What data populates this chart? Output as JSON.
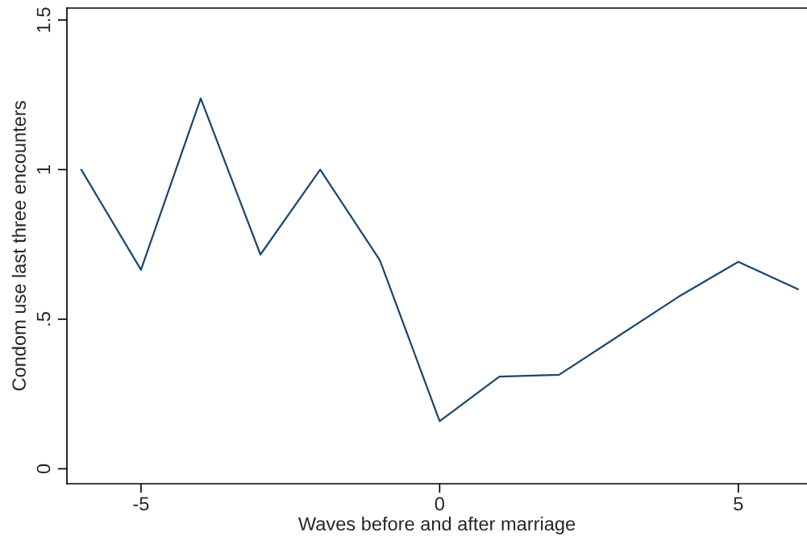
{
  "chart_data": {
    "type": "line",
    "xlabel": "Waves before and after marriage",
    "ylabel": "Condom use last three encounters",
    "x": [
      -6,
      -5,
      -4,
      -3,
      -2,
      -1,
      0,
      1,
      2,
      4,
      5,
      6
    ],
    "series": [
      {
        "color": "#1a476f",
        "values": [
          1.0,
          0.665,
          1.238,
          0.716,
          1.0,
          0.697,
          0.159,
          0.308,
          0.314,
          0.575,
          0.692,
          0.6
        ]
      }
    ],
    "xlim": [
      -6.24,
      6.15
    ],
    "ylim": [
      -0.05,
      1.54
    ],
    "xticks": [
      -5,
      0,
      5
    ],
    "yticks": [
      0,
      {
        "value": 0.5,
        "label": ".5"
      },
      1,
      1.5
    ],
    "grid": false,
    "legend": false,
    "marker": "none",
    "line_style": "solid"
  }
}
